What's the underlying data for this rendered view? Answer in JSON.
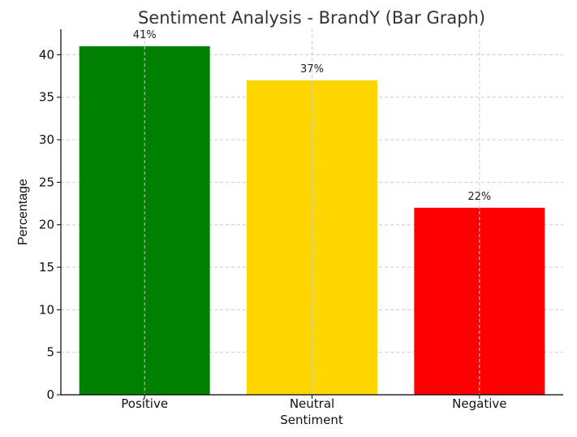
{
  "chart_data": {
    "type": "bar",
    "title": "Sentiment Analysis - BrandY (Bar Graph)",
    "xlabel": "Sentiment",
    "ylabel": "Percentage",
    "categories": [
      "Positive",
      "Neutral",
      "Negative"
    ],
    "values": [
      41,
      37,
      22
    ],
    "data_labels": [
      "41%",
      "37%",
      "22%"
    ],
    "colors": [
      "#008000",
      "#FFD700",
      "#FF0000"
    ],
    "ylim": [
      0,
      43
    ],
    "yticks": [
      0,
      5,
      10,
      15,
      20,
      25,
      30,
      35,
      40
    ],
    "grid": true
  }
}
